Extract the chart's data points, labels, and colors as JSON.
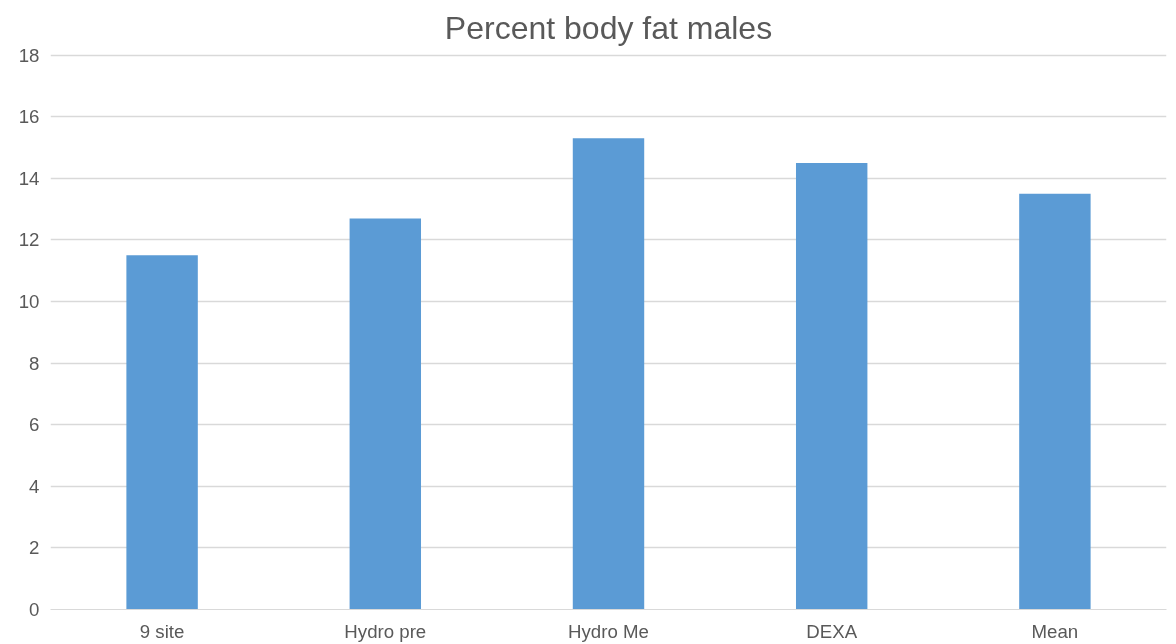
{
  "chart_data": {
    "type": "bar",
    "title": "Percent body fat males",
    "categories": [
      "9 site",
      "Hydro pre",
      "Hydro Me",
      "DEXA",
      "Mean"
    ],
    "values": [
      11.5,
      12.7,
      15.3,
      14.5,
      13.5
    ],
    "color": "#5b9bd5",
    "ylim": [
      0,
      18
    ],
    "yticks": [
      0,
      2,
      4,
      6,
      8,
      10,
      12,
      14,
      16,
      18
    ],
    "grid": "y"
  }
}
